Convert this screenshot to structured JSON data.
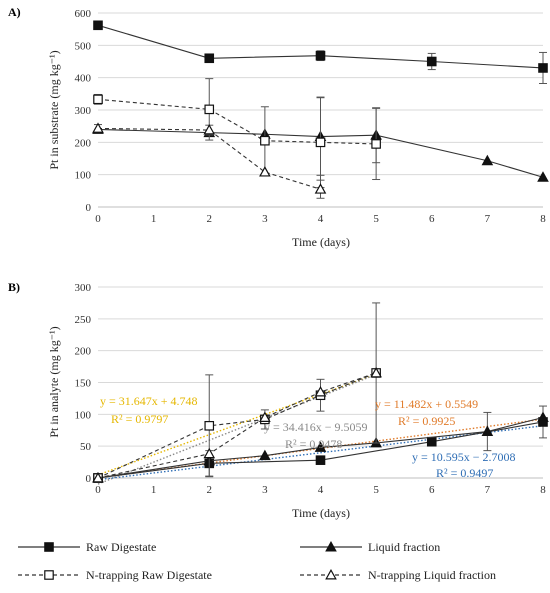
{
  "legend": [
    {
      "name": "Raw Digestate",
      "marker": "square-filled",
      "dash": "solid"
    },
    {
      "name": "Liquid fraction",
      "marker": "triangle-filled",
      "dash": "solid"
    },
    {
      "name": "N-trapping Raw Digestate",
      "marker": "square-open",
      "dash": "dashed"
    },
    {
      "name": "N-trapping Liquid fraction",
      "marker": "triangle-open",
      "dash": "dashed"
    }
  ],
  "chart_data": [
    {
      "panel": "A)",
      "type": "line",
      "xlabel": "Time (days)",
      "ylabel": "Pt in substrate (mg kg⁻¹)",
      "xlim": [
        0,
        8
      ],
      "ylim": [
        0,
        600
      ],
      "xticks": [
        "0",
        "1",
        "2",
        "3",
        "4",
        "5",
        "6",
        "7",
        "8"
      ],
      "yticks": [
        "0",
        "100",
        "200",
        "300",
        "400",
        "500",
        "600"
      ],
      "grid": "horizontal",
      "series": [
        {
          "name": "Raw Digestate",
          "x": [
            0,
            2,
            4,
            6,
            8
          ],
          "y": [
            562,
            460,
            468,
            450,
            430
          ],
          "err": [
            0,
            0,
            15,
            25,
            48
          ],
          "marker": "square-filled",
          "dash": "solid"
        },
        {
          "name": "Liquid fraction",
          "x": [
            0,
            2,
            3,
            4,
            5,
            7,
            8
          ],
          "y": [
            240,
            230,
            225,
            218,
            222,
            143,
            92
          ],
          "err": [
            0,
            0,
            0,
            120,
            85,
            0,
            0
          ],
          "marker": "triangle-filled",
          "dash": "solid"
        },
        {
          "name": "N-trapping Raw Digestate",
          "x": [
            0,
            2,
            3,
            4,
            5
          ],
          "y": [
            333,
            302,
            205,
            200,
            195
          ],
          "err": [
            15,
            95,
            105,
            140,
            110
          ],
          "marker": "square-open",
          "dash": "dashed"
        },
        {
          "name": "N-trapping Liquid fraction",
          "x": [
            0,
            2,
            3,
            4
          ],
          "y": [
            243,
            238,
            108,
            55
          ],
          "err": [
            12,
            15,
            0,
            28
          ],
          "marker": "triangle-open",
          "dash": "dashed"
        }
      ]
    },
    {
      "panel": "B)",
      "type": "line",
      "xlabel": "Time (days)",
      "ylabel": "Pt in analyte (mg kg⁻¹)",
      "xlim": [
        0,
        8
      ],
      "ylim": [
        0,
        300
      ],
      "xticks": [
        "0",
        "1",
        "2",
        "3",
        "4",
        "5",
        "6",
        "7",
        "8"
      ],
      "yticks": [
        "0",
        "50",
        "100",
        "150",
        "200",
        "250",
        "300"
      ],
      "grid": "horizontal",
      "series": [
        {
          "name": "Raw Digestate",
          "x": [
            0,
            2,
            4,
            6,
            8
          ],
          "y": [
            0,
            23,
            28,
            57,
            88
          ],
          "err": [
            0,
            20,
            0,
            0,
            25
          ],
          "marker": "square-filled",
          "dash": "solid"
        },
        {
          "name": "Liquid fraction",
          "x": [
            0,
            2,
            3,
            4,
            5,
            7,
            8
          ],
          "y": [
            0,
            27,
            35,
            48,
            55,
            73,
            95
          ],
          "err": [
            0,
            0,
            0,
            0,
            0,
            30,
            0
          ],
          "marker": "triangle-filled",
          "dash": "solid"
        },
        {
          "name": "N-trapping Raw Digestate",
          "x": [
            0,
            2,
            3,
            4,
            5
          ],
          "y": [
            0,
            82,
            92,
            130,
            165
          ],
          "err": [
            0,
            80,
            15,
            25,
            110
          ],
          "marker": "square-open",
          "dash": "dashed"
        },
        {
          "name": "N-trapping Liquid fraction",
          "x": [
            0,
            2,
            3,
            4,
            5
          ],
          "y": [
            0,
            38,
            95,
            135,
            165
          ],
          "err": [
            0,
            0,
            0,
            0,
            0
          ],
          "marker": "triangle-open",
          "dash": "dashed"
        }
      ],
      "trendlines": [
        {
          "slope": 31.647,
          "intercept": 4.748,
          "color": "#e5b700",
          "equation": "y = 31.647x + 4.748",
          "r2": "R² = 0.9797"
        },
        {
          "slope": 34.416,
          "intercept": -9.5059,
          "color": "#8a8a8a",
          "equation": "y = 34.416x − 9.5059",
          "r2": "R² = 0.9478"
        },
        {
          "slope": 11.482,
          "intercept": 0.5549,
          "color": "#e07b2a",
          "equation": "y = 11.482x + 0.5549",
          "r2": "R² = 0.9925"
        },
        {
          "slope": 10.595,
          "intercept": -2.7008,
          "color": "#2f6eb5",
          "equation": "y = 10.595x − 2.7008",
          "r2": "R² = 0.9497"
        }
      ]
    }
  ]
}
